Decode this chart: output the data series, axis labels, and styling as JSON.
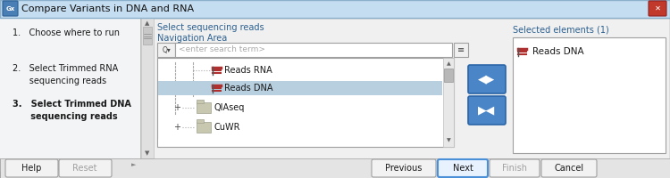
{
  "title": "Compare Variants in DNA and RNA",
  "title_bg": "#c5ddf0",
  "body_bg": "#e8e8e8",
  "panel_bg": "#f0f0f0",
  "white": "#ffffff",
  "close_btn_color": "#c0392b",
  "gx_icon_color": "#4a7fb5",
  "nav_label": "Select sequencing reads",
  "nav_area_label": "Navigation Area",
  "search_placeholder": "<enter search term>",
  "selected_label": "Selected elements (1)",
  "selected_item": "Reads DNA",
  "reads_dna_highlight": "#b8cfe0",
  "btn_next_border": "#4a90d9",
  "btn_next_bg": "#e8f2ff",
  "icon_color_red": "#b03030",
  "arrow_btn_color": "#4a85c8",
  "arrow_btn_border": "#2a65a8",
  "text_blue": "#2c6090",
  "text_dark": "#1a1a1a",
  "border_color": "#a8a8a8",
  "scrollbar_bg": "#d8d8d8",
  "scrollbar_thumb": "#b0b0b0",
  "step3_bold": true,
  "steps": [
    [
      "1.   Choose where to run",
      false
    ],
    [
      "2.   Select Trimmed RNA\n      sequencing reads",
      false
    ],
    [
      "3.   Select Trimmed DNA\n      sequencing reads",
      true
    ]
  ],
  "btn_data": [
    [
      "Help",
      8,
      55,
      false
    ],
    [
      "Reset",
      68,
      55,
      false
    ],
    [
      "Previous",
      418,
      68,
      false
    ],
    [
      "Next",
      492,
      52,
      true
    ],
    [
      "Finish",
      550,
      52,
      false
    ],
    [
      "Cancel",
      608,
      58,
      false
    ]
  ]
}
